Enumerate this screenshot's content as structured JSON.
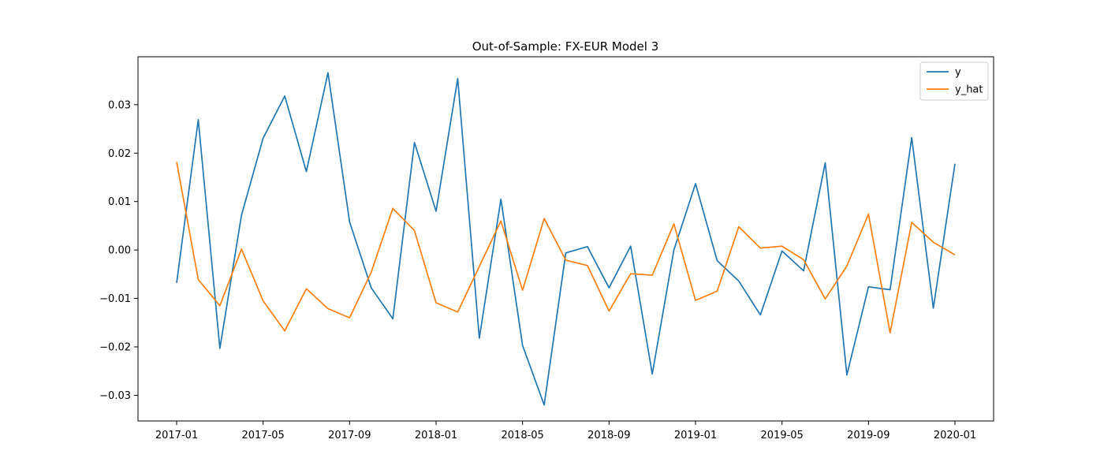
{
  "chart_data": {
    "type": "line",
    "title": "Out-of-Sample: FX-EUR Model 3",
    "xlabel": "",
    "ylabel": "",
    "x": [
      "2017-01",
      "2017-02",
      "2017-03",
      "2017-04",
      "2017-05",
      "2017-06",
      "2017-07",
      "2017-08",
      "2017-09",
      "2017-10",
      "2017-11",
      "2017-12",
      "2018-01",
      "2018-02",
      "2018-03",
      "2018-04",
      "2018-05",
      "2018-06",
      "2018-07",
      "2018-08",
      "2018-09",
      "2018-10",
      "2018-11",
      "2018-12",
      "2019-01",
      "2019-02",
      "2019-03",
      "2019-04",
      "2019-05",
      "2019-06",
      "2019-07",
      "2019-08",
      "2019-09",
      "2019-10",
      "2019-11",
      "2019-12",
      "2020-01"
    ],
    "series": [
      {
        "name": "y",
        "color": "#1f77b4",
        "values": [
          -0.0068,
          0.0269,
          -0.0203,
          0.0072,
          0.0231,
          0.0318,
          0.0162,
          0.0366,
          0.0058,
          -0.0078,
          -0.0142,
          0.0222,
          0.008,
          0.0354,
          -0.0182,
          0.0105,
          -0.0197,
          -0.032,
          -0.0006,
          0.0007,
          -0.0078,
          0.0008,
          -0.0256,
          0.0,
          0.0137,
          -0.0022,
          -0.0064,
          -0.0134,
          -0.0002,
          -0.0043,
          0.018,
          -0.0258,
          -0.0076,
          -0.0082,
          0.0232,
          -0.012,
          0.0178
        ]
      },
      {
        "name": "y_hat",
        "color": "#ff7f0e",
        "values": [
          0.0182,
          -0.0061,
          -0.0115,
          0.0002,
          -0.0105,
          -0.0167,
          -0.008,
          -0.0121,
          -0.014,
          -0.0046,
          0.0086,
          0.004,
          -0.0109,
          -0.0128,
          -0.0034,
          0.006,
          -0.0083,
          0.0065,
          -0.0021,
          -0.0032,
          -0.0126,
          -0.0049,
          -0.0052,
          0.0054,
          -0.0104,
          -0.0085,
          0.0048,
          0.0004,
          0.0008,
          -0.002,
          -0.0101,
          -0.0033,
          0.0074,
          -0.0171,
          0.0057,
          0.0016,
          -0.001
        ]
      }
    ],
    "x_ticks": [
      "2017-01",
      "2017-05",
      "2017-09",
      "2018-01",
      "2018-05",
      "2018-09",
      "2019-01",
      "2019-05",
      "2019-09",
      "2020-01"
    ],
    "y_ticks": [
      -0.03,
      -0.02,
      -0.01,
      0.0,
      0.01,
      0.02,
      0.03
    ],
    "y_tick_labels": [
      "−0.03",
      "−0.02",
      "−0.01",
      "0.00",
      "0.01",
      "0.02",
      "0.03"
    ],
    "ylim": [
      -0.0353,
      0.0399
    ],
    "grid": false,
    "legend_position": "top-right"
  }
}
